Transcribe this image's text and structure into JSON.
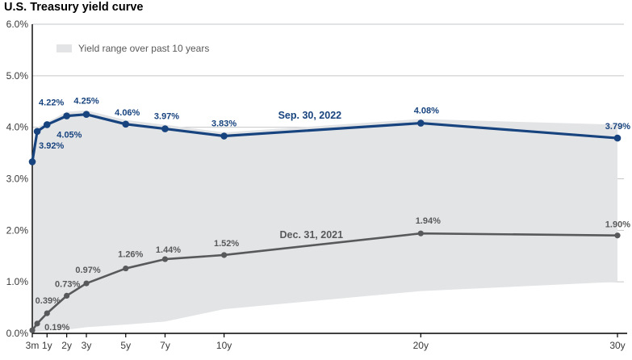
{
  "page": {
    "title": "U.S. Treasury yield curve"
  },
  "legend": {
    "label": "Yield range over past 10 years"
  },
  "colors": {
    "navy": "#17437e",
    "gray": "#58595b",
    "label_gray": "#595959",
    "band": "#e3e4e6",
    "grid": "#c6c7c9",
    "axis": "#000000",
    "tick_text": "#3a3a3a"
  },
  "chart_data": {
    "type": "line",
    "title": "U.S. Treasury yield curve",
    "x_years": [
      0.25,
      0.5,
      1,
      2,
      3,
      5,
      7,
      10,
      20,
      30
    ],
    "x_axis": {
      "ticks": [
        {
          "label": "3m",
          "years": 0.25
        },
        {
          "label": "1y",
          "years": 1
        },
        {
          "label": "2y",
          "years": 2
        },
        {
          "label": "3y",
          "years": 3
        },
        {
          "label": "5y",
          "years": 5
        },
        {
          "label": "7y",
          "years": 7
        },
        {
          "label": "10y",
          "years": 10
        },
        {
          "label": "20y",
          "years": 20
        },
        {
          "label": "30y",
          "years": 30
        }
      ]
    },
    "y_axis": {
      "min": 0,
      "max": 6,
      "tick_step": 1,
      "tick_labels": [
        "0.0%",
        "1.0%",
        "2.0%",
        "3.0%",
        "4.0%",
        "5.0%",
        "6.0%"
      ]
    },
    "grid": true,
    "legend_position": "top-left-inside",
    "band": {
      "name": "Yield range over past 10 years",
      "color": "#e3e4e6",
      "upper": [
        3.5,
        4.0,
        4.1,
        4.3,
        4.33,
        4.14,
        4.05,
        3.9,
        4.16,
        4.05
      ],
      "lower": [
        0.02,
        0.03,
        0.05,
        0.07,
        0.12,
        0.17,
        0.23,
        0.47,
        0.82,
        1.0
      ]
    },
    "series": [
      {
        "name": "Sep. 30, 2022",
        "color": "#17437e",
        "values": [
          3.33,
          3.92,
          4.05,
          4.22,
          4.25,
          4.06,
          3.97,
          3.83,
          4.08,
          3.79
        ],
        "point_labels": [
          null,
          "3.92%",
          "4.05%",
          "4.22%",
          "4.25%",
          "4.06%",
          "3.97%",
          "3.83%",
          "4.08%",
          "3.79%"
        ],
        "label_offsets": [
          null,
          [
            2,
            21,
            "start"
          ],
          [
            12,
            16,
            "start"
          ],
          [
            -19,
            -13,
            "middle"
          ],
          [
            0,
            -13,
            "middle"
          ],
          [
            2,
            -11,
            "middle"
          ],
          [
            2,
            -12,
            "middle"
          ],
          [
            0,
            -12,
            "middle"
          ],
          [
            7,
            -12,
            "middle"
          ],
          [
            16,
            -11,
            "end"
          ]
        ],
        "name_label_pos": {
          "x_years": 14.36,
          "value": 4.17
        }
      },
      {
        "name": "Dec. 31, 2021",
        "color": "#58595b",
        "values": [
          0.06,
          0.19,
          0.39,
          0.73,
          0.97,
          1.26,
          1.44,
          1.52,
          1.94,
          1.9
        ],
        "point_labels": [
          null,
          "0.19%",
          "0.39%",
          "0.73%",
          "0.97%",
          "1.26%",
          "1.44%",
          "1.52%",
          "1.94%",
          "1.90%"
        ],
        "label_offsets": [
          null,
          [
            9,
            8,
            "start"
          ],
          [
            1,
            -12,
            "middle"
          ],
          [
            1,
            -11,
            "middle"
          ],
          [
            2,
            -13,
            "middle"
          ],
          [
            6,
            -14,
            "middle"
          ],
          [
            4,
            -8,
            "middle"
          ],
          [
            3,
            -11,
            "middle"
          ],
          [
            9,
            -12,
            "middle"
          ],
          [
            16,
            -10,
            "end"
          ]
        ],
        "name_label_pos": {
          "x_years": 14.44,
          "value": 1.85
        }
      }
    ]
  }
}
